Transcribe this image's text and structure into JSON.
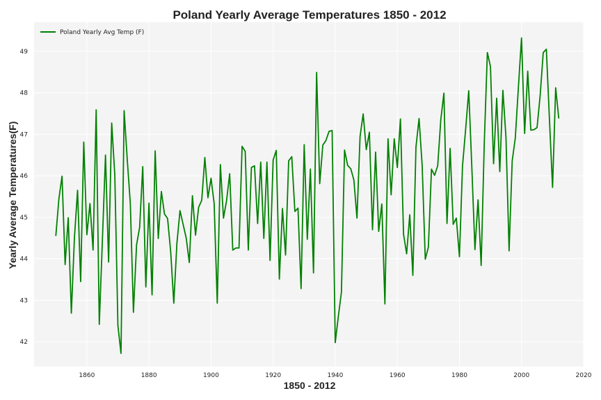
{
  "chart_data": {
    "type": "line",
    "title": "Poland Yearly Average Temperatures 1850 - 2012",
    "xlabel": "1850 - 2012",
    "ylabel": "Yearly Average Temperatures(F)",
    "xlim": [
      1843,
      2020
    ],
    "ylim": [
      41.4,
      49.7
    ],
    "x_ticks": [
      1860,
      1880,
      1900,
      1920,
      1940,
      1960,
      1980,
      2000,
      2020
    ],
    "y_ticks": [
      42,
      43,
      44,
      45,
      46,
      47,
      48,
      49
    ],
    "grid": true,
    "legend_position": "top-left",
    "series": [
      {
        "name": "Poland Yearly Avg Temp (F)",
        "color": "#008000",
        "x": [
          1850,
          1851,
          1852,
          1853,
          1854,
          1855,
          1856,
          1857,
          1858,
          1859,
          1860,
          1861,
          1862,
          1863,
          1864,
          1865,
          1866,
          1867,
          1868,
          1869,
          1870,
          1871,
          1872,
          1873,
          1874,
          1875,
          1876,
          1877,
          1878,
          1879,
          1880,
          1881,
          1882,
          1883,
          1884,
          1885,
          1886,
          1887,
          1888,
          1889,
          1890,
          1891,
          1892,
          1893,
          1894,
          1895,
          1896,
          1897,
          1898,
          1899,
          1900,
          1901,
          1902,
          1903,
          1904,
          1905,
          1906,
          1907,
          1908,
          1909,
          1910,
          1911,
          1912,
          1913,
          1914,
          1915,
          1916,
          1917,
          1918,
          1919,
          1920,
          1921,
          1922,
          1923,
          1924,
          1925,
          1926,
          1927,
          1928,
          1929,
          1930,
          1931,
          1932,
          1933,
          1934,
          1935,
          1936,
          1937,
          1938,
          1939,
          1940,
          1941,
          1942,
          1943,
          1944,
          1945,
          1946,
          1947,
          1948,
          1949,
          1950,
          1951,
          1952,
          1953,
          1954,
          1955,
          1956,
          1957,
          1958,
          1959,
          1960,
          1961,
          1962,
          1963,
          1964,
          1965,
          1966,
          1967,
          1968,
          1969,
          1970,
          1971,
          1972,
          1973,
          1974,
          1975,
          1976,
          1977,
          1978,
          1979,
          1980,
          1981,
          1982,
          1983,
          1984,
          1985,
          1986,
          1987,
          1988,
          1989,
          1990,
          1991,
          1992,
          1993,
          1994,
          1995,
          1996,
          1997,
          1998,
          1999,
          2000,
          2001,
          2002,
          2003,
          2004,
          2005,
          2006,
          2007,
          2008,
          2009,
          2010,
          2011,
          2012
        ],
        "values": [
          44.55,
          45.45,
          45.99,
          43.86,
          44.99,
          42.69,
          44.51,
          45.65,
          43.45,
          46.81,
          44.58,
          45.33,
          44.21,
          47.59,
          42.42,
          44.44,
          46.5,
          43.92,
          47.27,
          46.02,
          42.39,
          41.72,
          47.57,
          46.4,
          45.33,
          42.71,
          44.33,
          44.76,
          46.22,
          43.32,
          45.34,
          43.13,
          46.6,
          44.49,
          45.62,
          45.08,
          44.97,
          44.17,
          42.93,
          44.37,
          45.16,
          44.83,
          44.5,
          43.91,
          45.52,
          44.57,
          45.24,
          45.41,
          46.44,
          45.47,
          45.94,
          45.33,
          42.93,
          46.27,
          44.98,
          45.4,
          46.05,
          44.21,
          44.26,
          44.26,
          46.71,
          46.59,
          44.21,
          46.2,
          46.24,
          44.85,
          46.33,
          44.49,
          46.33,
          43.96,
          46.38,
          46.61,
          43.51,
          45.21,
          44.09,
          46.36,
          46.46,
          45.14,
          45.22,
          43.28,
          46.75,
          44.47,
          46.16,
          43.66,
          48.49,
          45.81,
          46.74,
          46.85,
          47.07,
          47.09,
          41.98,
          42.61,
          43.2,
          46.62,
          46.25,
          46.17,
          45.9,
          44.98,
          46.95,
          47.49,
          46.63,
          47.05,
          44.7,
          46.57,
          44.66,
          45.32,
          42.91,
          46.89,
          45.54,
          46.89,
          46.2,
          47.37,
          44.59,
          44.12,
          45.06,
          43.6,
          46.69,
          47.38,
          46.25,
          43.99,
          44.28,
          46.16,
          46.01,
          46.24,
          47.35,
          47.99,
          44.85,
          46.66,
          44.83,
          44.98,
          44.05,
          46.24,
          47.12,
          48.05,
          46.2,
          44.22,
          45.42,
          43.84,
          46.78,
          48.97,
          48.63,
          46.29,
          47.87,
          46.1,
          48.06,
          46.91,
          44.19,
          46.36,
          46.91,
          48.14,
          49.32,
          47.02,
          48.52,
          47.1,
          47.11,
          47.16,
          47.93,
          48.97,
          49.05,
          47.35,
          45.72,
          48.12,
          47.38
        ]
      }
    ]
  }
}
